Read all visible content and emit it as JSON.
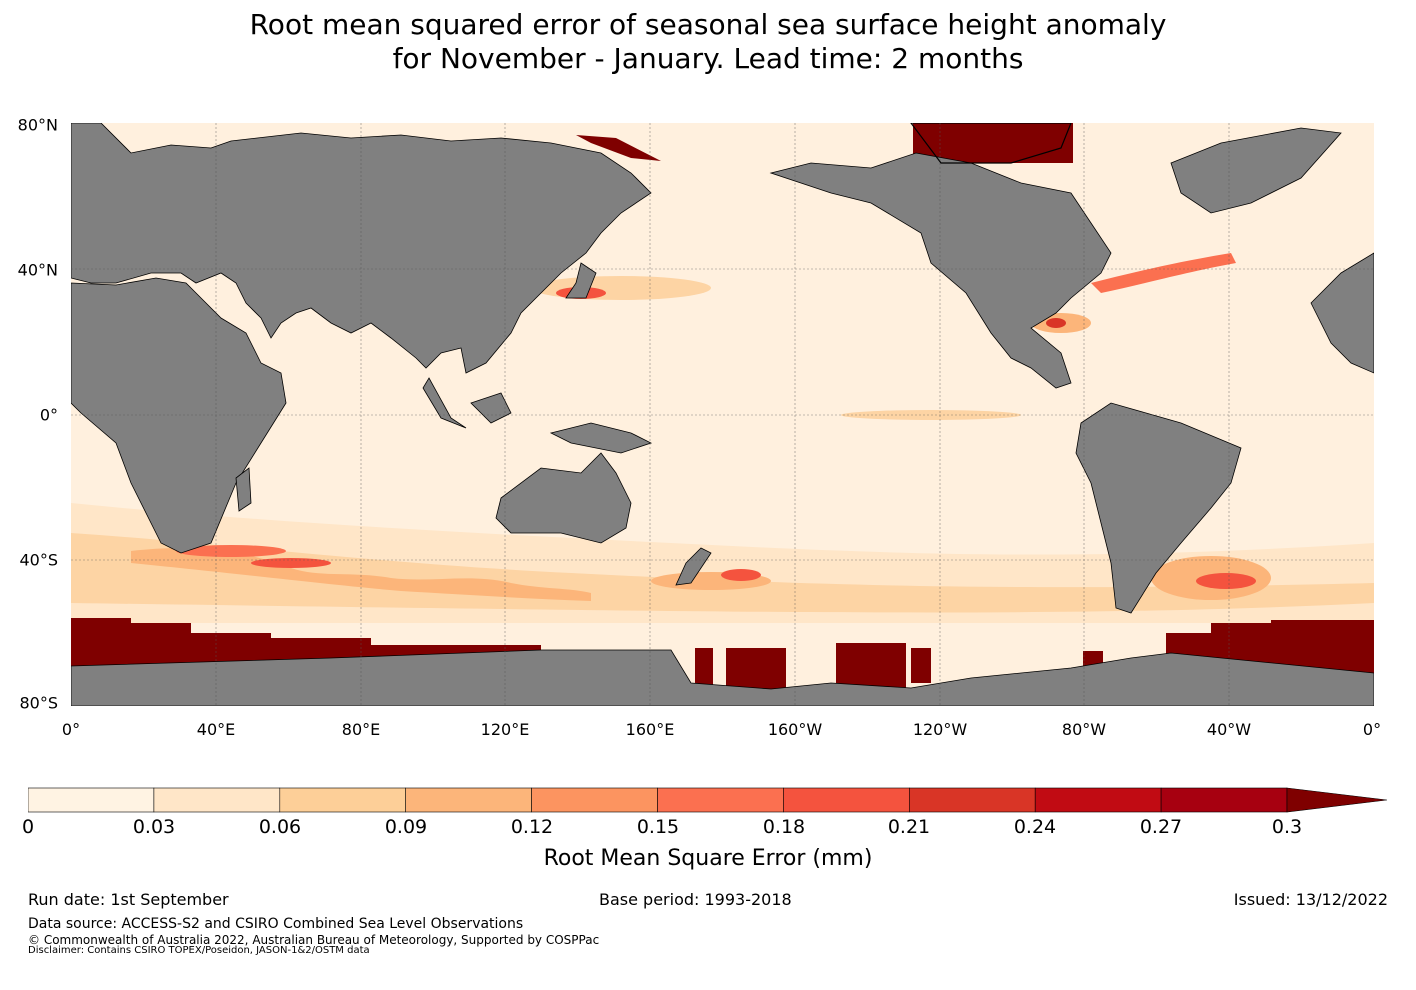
{
  "header": {
    "title_line1": "Root mean squared error of seasonal sea surface height anomaly",
    "title_line2": "for November - January. Lead time: 2 months"
  },
  "map": {
    "lat_labels": [
      "80°N",
      "40°N",
      "0°",
      "40°S",
      "80°S"
    ],
    "lon_labels": [
      "0°",
      "40°E",
      "80°E",
      "120°E",
      "160°E",
      "160°W",
      "120°W",
      "80°W",
      "40°W",
      "0°"
    ],
    "land_color": "#808080",
    "ocean_base_color": "#fff0de",
    "high_error_color": "#7f0000"
  },
  "colorbar": {
    "ticks": [
      "0",
      "0.03",
      "0.06",
      "0.09",
      "0.12",
      "0.15",
      "0.18",
      "0.21",
      "0.24",
      "0.27",
      "0.3"
    ],
    "label": "Root Mean Square Error (mm)",
    "colors": [
      "#fff3e3",
      "#ffe6c8",
      "#fdcf98",
      "#fcb57a",
      "#fc9460",
      "#fb7050",
      "#f4533e",
      "#d93526",
      "#c10b13",
      "#a70010",
      "#7f0000"
    ],
    "extend": "max"
  },
  "footer": {
    "run_date": "Run date: 1st September",
    "base_period": "Base period: 1993-2018",
    "issued": "Issued: 13/12/2022",
    "data_source": "Data source: ACCESS-S2 and CSIRO Combined Sea Level Observations",
    "copyright": "© Commonwealth of Australia 2022, Australian Bureau of Meteorology, Supported by COSPPac",
    "disclaimer": "Disclaimer: Contains CSIRO TOPEX/Poseidon, JASON-1&2/OSTM data"
  }
}
